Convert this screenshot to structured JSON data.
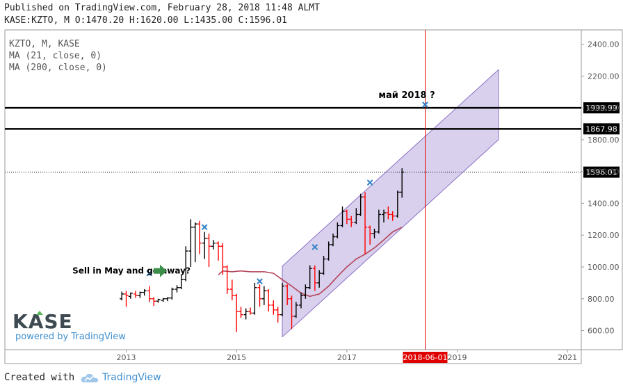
{
  "header": {
    "published": "Published on TradingView.com, February 28, 2018 11:48 ALMT",
    "ohlc": "KASE:KZTO, M O:1470.20 H:1620.00 L:1435.00 C:1596.01"
  },
  "legend": {
    "symbol": "KZTO, M, KASE",
    "ma21": "MA (21, close, 0)",
    "ma200": "MA (200, close, 0)"
  },
  "watermark": {
    "logo_text": "KASE",
    "powered": "powered by TradingView"
  },
  "footer": {
    "created": "Created with",
    "brand": "TradingView"
  },
  "colors": {
    "up": "#000000",
    "down": "#ff0000",
    "ma": "#b5445a",
    "channel_fill": "#b8a9dc",
    "channel_edge": "#8a6fc6",
    "marker": "#3a86c8",
    "arrow": "#3c8f4a",
    "vline": "#e00000"
  },
  "chart_data": {
    "type": "ohlc",
    "interval": "monthly",
    "y_ticks": [
      "600.00",
      "800.00",
      "1000.00",
      "1200.00",
      "1400.00",
      "1600.00",
      "1800.00",
      "2000.00",
      "2200.00",
      "2400.00"
    ],
    "x_ticks": [
      {
        "label": "2013",
        "t": 2013.0
      },
      {
        "label": "2015",
        "t": 2015.0
      },
      {
        "label": "2017",
        "t": 2017.0
      },
      {
        "label": "2019",
        "t": 2019.0
      },
      {
        "label": "2021",
        "t": 2021.0
      }
    ],
    "ylim": [
      480,
      2490
    ],
    "xlim": [
      2010.8,
      2021.25
    ],
    "bars": [
      {
        "t": 2012.92,
        "o": 800,
        "h": 845,
        "l": 790,
        "c": 830
      },
      {
        "t": 2013.0,
        "o": 830,
        "h": 850,
        "l": 750,
        "c": 820
      },
      {
        "t": 2013.08,
        "o": 815,
        "h": 840,
        "l": 800,
        "c": 835
      },
      {
        "t": 2013.17,
        "o": 830,
        "h": 850,
        "l": 805,
        "c": 820
      },
      {
        "t": 2013.25,
        "o": 820,
        "h": 845,
        "l": 805,
        "c": 840
      },
      {
        "t": 2013.33,
        "o": 840,
        "h": 860,
        "l": 820,
        "c": 850
      },
      {
        "t": 2013.42,
        "o": 850,
        "h": 880,
        "l": 780,
        "c": 800
      },
      {
        "t": 2013.5,
        "o": 800,
        "h": 810,
        "l": 755,
        "c": 785
      },
      {
        "t": 2013.58,
        "o": 785,
        "h": 800,
        "l": 775,
        "c": 795
      },
      {
        "t": 2013.67,
        "o": 790,
        "h": 805,
        "l": 780,
        "c": 800
      },
      {
        "t": 2013.75,
        "o": 800,
        "h": 810,
        "l": 785,
        "c": 805
      },
      {
        "t": 2013.83,
        "o": 805,
        "h": 870,
        "l": 795,
        "c": 860
      },
      {
        "t": 2013.92,
        "o": 860,
        "h": 885,
        "l": 840,
        "c": 870
      },
      {
        "t": 2014.0,
        "o": 870,
        "h": 950,
        "l": 860,
        "c": 920
      },
      {
        "t": 2014.08,
        "o": 920,
        "h": 1130,
        "l": 910,
        "c": 1100
      },
      {
        "t": 2014.17,
        "o": 1100,
        "h": 1300,
        "l": 1000,
        "c": 1250
      },
      {
        "t": 2014.25,
        "o": 1250,
        "h": 1280,
        "l": 1030,
        "c": 1270
      },
      {
        "t": 2014.33,
        "o": 1270,
        "h": 1290,
        "l": 1080,
        "c": 1150
      },
      {
        "t": 2014.42,
        "o": 1150,
        "h": 1220,
        "l": 1050,
        "c": 1180
      },
      {
        "t": 2014.5,
        "o": 1180,
        "h": 1210,
        "l": 1000,
        "c": 1130
      },
      {
        "t": 2014.58,
        "o": 1130,
        "h": 1170,
        "l": 1110,
        "c": 1150
      },
      {
        "t": 2014.67,
        "o": 1150,
        "h": 1160,
        "l": 1040,
        "c": 1130
      },
      {
        "t": 2014.75,
        "o": 1130,
        "h": 1150,
        "l": 950,
        "c": 1000
      },
      {
        "t": 2014.83,
        "o": 1000,
        "h": 1010,
        "l": 830,
        "c": 860
      },
      {
        "t": 2014.92,
        "o": 860,
        "h": 920,
        "l": 790,
        "c": 820
      },
      {
        "t": 2015.0,
        "o": 820,
        "h": 830,
        "l": 590,
        "c": 720
      },
      {
        "t": 2015.08,
        "o": 720,
        "h": 750,
        "l": 680,
        "c": 700
      },
      {
        "t": 2015.17,
        "o": 700,
        "h": 740,
        "l": 670,
        "c": 720
      },
      {
        "t": 2015.25,
        "o": 720,
        "h": 745,
        "l": 700,
        "c": 710
      },
      {
        "t": 2015.33,
        "o": 710,
        "h": 900,
        "l": 700,
        "c": 870
      },
      {
        "t": 2015.42,
        "o": 870,
        "h": 890,
        "l": 750,
        "c": 800
      },
      {
        "t": 2015.5,
        "o": 800,
        "h": 880,
        "l": 760,
        "c": 850
      },
      {
        "t": 2015.58,
        "o": 850,
        "h": 860,
        "l": 720,
        "c": 760
      },
      {
        "t": 2015.67,
        "o": 760,
        "h": 790,
        "l": 700,
        "c": 730
      },
      {
        "t": 2015.75,
        "o": 730,
        "h": 750,
        "l": 650,
        "c": 700
      },
      {
        "t": 2015.83,
        "o": 700,
        "h": 900,
        "l": 690,
        "c": 880
      },
      {
        "t": 2015.92,
        "o": 880,
        "h": 890,
        "l": 760,
        "c": 800
      },
      {
        "t": 2016.0,
        "o": 800,
        "h": 820,
        "l": 610,
        "c": 690
      },
      {
        "t": 2016.08,
        "o": 690,
        "h": 780,
        "l": 680,
        "c": 760
      },
      {
        "t": 2016.17,
        "o": 760,
        "h": 840,
        "l": 740,
        "c": 820
      },
      {
        "t": 2016.25,
        "o": 820,
        "h": 890,
        "l": 800,
        "c": 870
      },
      {
        "t": 2016.33,
        "o": 870,
        "h": 1010,
        "l": 860,
        "c": 990
      },
      {
        "t": 2016.42,
        "o": 990,
        "h": 1010,
        "l": 850,
        "c": 900
      },
      {
        "t": 2016.5,
        "o": 900,
        "h": 980,
        "l": 870,
        "c": 960
      },
      {
        "t": 2016.58,
        "o": 960,
        "h": 1070,
        "l": 950,
        "c": 1050
      },
      {
        "t": 2016.67,
        "o": 1050,
        "h": 1160,
        "l": 1040,
        "c": 1140
      },
      {
        "t": 2016.75,
        "o": 1140,
        "h": 1210,
        "l": 1130,
        "c": 1190
      },
      {
        "t": 2016.83,
        "o": 1190,
        "h": 1280,
        "l": 1180,
        "c": 1260
      },
      {
        "t": 2016.92,
        "o": 1260,
        "h": 1380,
        "l": 1250,
        "c": 1350
      },
      {
        "t": 2017.0,
        "o": 1350,
        "h": 1360,
        "l": 1270,
        "c": 1300
      },
      {
        "t": 2017.08,
        "o": 1300,
        "h": 1320,
        "l": 1250,
        "c": 1280
      },
      {
        "t": 2017.17,
        "o": 1280,
        "h": 1370,
        "l": 1270,
        "c": 1330
      },
      {
        "t": 2017.25,
        "o": 1330,
        "h": 1460,
        "l": 1320,
        "c": 1440
      },
      {
        "t": 2017.33,
        "o": 1440,
        "h": 1470,
        "l": 1080,
        "c": 1250
      },
      {
        "t": 2017.42,
        "o": 1250,
        "h": 1260,
        "l": 1140,
        "c": 1210
      },
      {
        "t": 2017.5,
        "o": 1210,
        "h": 1240,
        "l": 1180,
        "c": 1220
      },
      {
        "t": 2017.58,
        "o": 1220,
        "h": 1360,
        "l": 1210,
        "c": 1330
      },
      {
        "t": 2017.67,
        "o": 1330,
        "h": 1360,
        "l": 1280,
        "c": 1340
      },
      {
        "t": 2017.75,
        "o": 1340,
        "h": 1380,
        "l": 1300,
        "c": 1330
      },
      {
        "t": 2017.83,
        "o": 1330,
        "h": 1350,
        "l": 1290,
        "c": 1320
      },
      {
        "t": 2017.92,
        "o": 1320,
        "h": 1480,
        "l": 1310,
        "c": 1470
      },
      {
        "t": 2018.0,
        "o": 1470,
        "h": 1620,
        "l": 1435,
        "c": 1596
      }
    ],
    "ma21": [
      {
        "t": 2014.67,
        "v": 950
      },
      {
        "t": 2014.75,
        "v": 975
      },
      {
        "t": 2014.92,
        "v": 970
      },
      {
        "t": 2015.08,
        "v": 975
      },
      {
        "t": 2015.25,
        "v": 970
      },
      {
        "t": 2015.5,
        "v": 970
      },
      {
        "t": 2015.67,
        "v": 960
      },
      {
        "t": 2015.83,
        "v": 920
      },
      {
        "t": 2016.0,
        "v": 880
      },
      {
        "t": 2016.17,
        "v": 835
      },
      {
        "t": 2016.33,
        "v": 815
      },
      {
        "t": 2016.5,
        "v": 830
      },
      {
        "t": 2016.67,
        "v": 880
      },
      {
        "t": 2016.83,
        "v": 940
      },
      {
        "t": 2017.0,
        "v": 1000
      },
      {
        "t": 2017.17,
        "v": 1050
      },
      {
        "t": 2017.33,
        "v": 1080
      },
      {
        "t": 2017.5,
        "v": 1120
      },
      {
        "t": 2017.67,
        "v": 1170
      },
      {
        "t": 2017.83,
        "v": 1220
      },
      {
        "t": 2018.0,
        "v": 1250
      }
    ],
    "channel": {
      "t_start": 2015.83,
      "t_end": 2019.75,
      "lower_start": 560,
      "lower_end": 1800,
      "upper_start": 1005,
      "upper_end": 2240
    },
    "hlines": [
      {
        "value": 2000,
        "label": "1999.99",
        "style": "solid"
      },
      {
        "value": 1868,
        "label": "1867.98",
        "style": "solid"
      },
      {
        "value": 1596,
        "label": "1596.01",
        "style": "dotted"
      }
    ],
    "vline": {
      "t": 2018.42,
      "label": "2018-06-01"
    },
    "markers": [
      {
        "t": 2013.42,
        "v": 960
      },
      {
        "t": 2014.42,
        "v": 1250
      },
      {
        "t": 2015.42,
        "v": 910
      },
      {
        "t": 2016.42,
        "v": 1125
      },
      {
        "t": 2017.42,
        "v": 1530
      },
      {
        "t": 2018.42,
        "v": 2020
      }
    ],
    "annotations": [
      {
        "text": "май 2018 ?",
        "t": 2017.75,
        "v": 2080
      },
      {
        "text": "Sell in May and go away?",
        "t": 2012.15,
        "v": 975
      }
    ]
  }
}
